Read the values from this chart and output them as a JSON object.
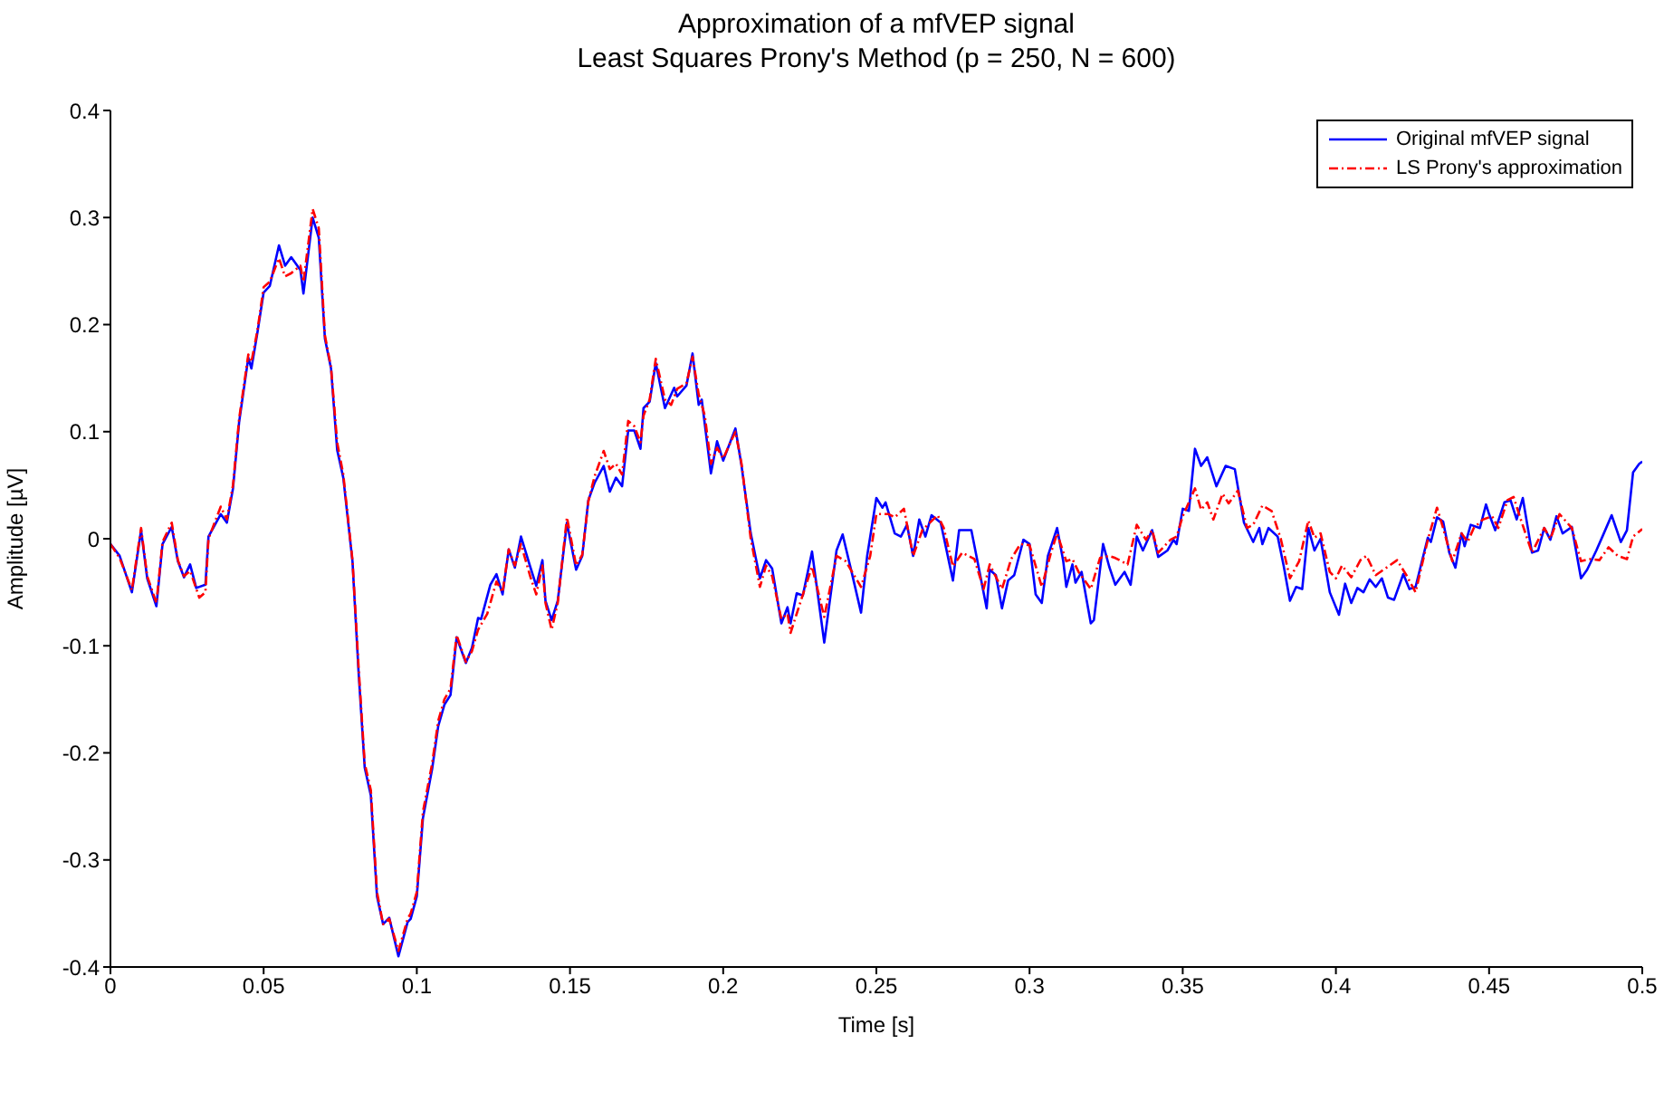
{
  "chart_data": {
    "type": "line",
    "title": "Approximation of a mfVEP signal",
    "subtitle": "Least Squares Prony's Method (p = 250, N = 600)",
    "xlabel": "Time [s]",
    "ylabel": "Amplitude [µV]",
    "xlim": [
      0,
      0.5
    ],
    "xticks": [
      0,
      0.05,
      0.1,
      0.15,
      0.2,
      0.25,
      0.3,
      0.35,
      0.4,
      0.45,
      0.5
    ],
    "ylim": [
      -0.4,
      0.4
    ],
    "yticks": [
      -0.4,
      -0.3,
      -0.2,
      -0.1,
      0,
      0.1,
      0.2,
      0.3,
      0.4
    ],
    "grid": false,
    "legend": "top right",
    "marker": "none",
    "series": [
      {
        "name": "Original mfVEP signal",
        "color": "#0000ff",
        "line_style": "solid",
        "x": [
          0,
          0.003,
          0.007,
          0.01,
          0.012,
          0.015,
          0.017,
          0.02,
          0.022,
          0.024,
          0.026,
          0.028,
          0.031,
          0.032,
          0.036,
          0.038,
          0.04,
          0.042,
          0.045,
          0.046,
          0.048,
          0.05,
          0.052,
          0.055,
          0.057,
          0.059,
          0.062,
          0.063,
          0.066,
          0.068,
          0.07,
          0.072,
          0.074,
          0.076,
          0.079,
          0.081,
          0.083,
          0.085,
          0.087,
          0.089,
          0.091,
          0.094,
          0.097,
          0.098,
          0.1,
          0.102,
          0.105,
          0.107,
          0.109,
          0.111,
          0.113,
          0.116,
          0.118,
          0.12,
          0.121,
          0.124,
          0.126,
          0.128,
          0.13,
          0.132,
          0.134,
          0.137,
          0.139,
          0.141,
          0.142,
          0.144,
          0.146,
          0.149,
          0.15,
          0.152,
          0.154,
          0.156,
          0.158,
          0.161,
          0.163,
          0.165,
          0.167,
          0.169,
          0.171,
          0.173,
          0.174,
          0.176,
          0.178,
          0.181,
          0.184,
          0.185,
          0.188,
          0.19,
          0.192,
          0.193,
          0.196,
          0.198,
          0.2,
          0.204,
          0.206,
          0.209,
          0.212,
          0.214,
          0.216,
          0.219,
          0.221,
          0.222,
          0.224,
          0.226,
          0.229,
          0.233,
          0.237,
          0.239,
          0.242,
          0.245,
          0.247,
          0.25,
          0.252,
          0.253,
          0.256,
          0.258,
          0.26,
          0.262,
          0.264,
          0.266,
          0.268,
          0.271,
          0.275,
          0.277,
          0.281,
          0.283,
          0.286,
          0.287,
          0.289,
          0.291,
          0.293,
          0.295,
          0.298,
          0.3,
          0.302,
          0.304,
          0.306,
          0.309,
          0.311,
          0.312,
          0.314,
          0.315,
          0.317,
          0.32,
          0.321,
          0.324,
          0.326,
          0.328,
          0.331,
          0.333,
          0.335,
          0.337,
          0.34,
          0.342,
          0.345,
          0.347,
          0.348,
          0.35,
          0.352,
          0.354,
          0.356,
          0.358,
          0.361,
          0.364,
          0.367,
          0.37,
          0.373,
          0.375,
          0.376,
          0.378,
          0.381,
          0.383,
          0.385,
          0.387,
          0.389,
          0.391,
          0.393,
          0.395,
          0.398,
          0.401,
          0.403,
          0.405,
          0.407,
          0.409,
          0.411,
          0.413,
          0.415,
          0.417,
          0.419,
          0.422,
          0.424,
          0.426,
          0.43,
          0.431,
          0.433,
          0.435,
          0.437,
          0.439,
          0.441,
          0.442,
          0.444,
          0.447,
          0.449,
          0.45,
          0.452,
          0.455,
          0.457,
          0.459,
          0.461,
          0.464,
          0.466,
          0.468,
          0.47,
          0.472,
          0.474,
          0.477,
          0.48,
          0.482,
          0.485,
          0.487,
          0.49,
          0.493,
          0.495,
          0.497,
          0.499,
          0.5
        ],
        "values": [
          -0.005,
          -0.016,
          -0.05,
          0.008,
          -0.037,
          -0.063,
          -0.005,
          0.011,
          -0.021,
          -0.036,
          -0.024,
          -0.046,
          -0.043,
          0.002,
          0.023,
          0.015,
          0.047,
          0.109,
          0.169,
          0.159,
          0.193,
          0.23,
          0.236,
          0.274,
          0.255,
          0.263,
          0.251,
          0.229,
          0.3,
          0.281,
          0.187,
          0.159,
          0.083,
          0.057,
          -0.021,
          -0.125,
          -0.214,
          -0.24,
          -0.334,
          -0.36,
          -0.354,
          -0.39,
          -0.358,
          -0.355,
          -0.334,
          -0.261,
          -0.215,
          -0.175,
          -0.155,
          -0.146,
          -0.092,
          -0.116,
          -0.102,
          -0.074,
          -0.075,
          -0.043,
          -0.033,
          -0.052,
          -0.01,
          -0.027,
          0.002,
          -0.026,
          -0.044,
          -0.02,
          -0.058,
          -0.076,
          -0.058,
          0.015,
          0,
          -0.029,
          -0.016,
          0.036,
          0.052,
          0.068,
          0.044,
          0.057,
          0.049,
          0.101,
          0.101,
          0.084,
          0.122,
          0.128,
          0.164,
          0.122,
          0.141,
          0.133,
          0.143,
          0.173,
          0.125,
          0.13,
          0.061,
          0.091,
          0.073,
          0.103,
          0.068,
          0.005,
          -0.037,
          -0.02,
          -0.028,
          -0.079,
          -0.064,
          -0.079,
          -0.051,
          -0.053,
          -0.012,
          -0.097,
          -0.011,
          0.004,
          -0.032,
          -0.069,
          -0.016,
          0.038,
          0.029,
          0.034,
          0.005,
          0.002,
          0.013,
          -0.016,
          0.018,
          0.002,
          0.022,
          0.015,
          -0.039,
          0.008,
          0.008,
          -0.021,
          -0.065,
          -0.029,
          -0.034,
          -0.065,
          -0.039,
          -0.034,
          -0.001,
          -0.005,
          -0.052,
          -0.06,
          -0.016,
          0.01,
          -0.021,
          -0.045,
          -0.024,
          -0.041,
          -0.031,
          -0.079,
          -0.076,
          -0.005,
          -0.026,
          -0.043,
          -0.031,
          -0.043,
          0.002,
          -0.011,
          0.008,
          -0.017,
          -0.011,
          -0.001,
          -0.005,
          0.028,
          0.026,
          0.084,
          0.068,
          0.076,
          0.049,
          0.068,
          0.065,
          0.015,
          -0.003,
          0.01,
          -0.005,
          0.01,
          0.002,
          -0.026,
          -0.058,
          -0.045,
          -0.047,
          0.01,
          -0.011,
          0,
          -0.05,
          -0.071,
          -0.042,
          -0.06,
          -0.046,
          -0.05,
          -0.038,
          -0.045,
          -0.037,
          -0.055,
          -0.057,
          -0.033,
          -0.047,
          -0.045,
          0.001,
          -0.003,
          0.02,
          0.016,
          -0.013,
          -0.027,
          0.005,
          -0.007,
          0.013,
          0.01,
          0.032,
          0.023,
          0.008,
          0.034,
          0.036,
          0.018,
          0.038,
          -0.013,
          -0.011,
          0.01,
          -0.001,
          0.021,
          0.005,
          0.011,
          -0.037,
          -0.029,
          -0.011,
          0.002,
          0.022,
          -0.003,
          0.008,
          0.062,
          0.07,
          0.072
        ]
      },
      {
        "name": "LS Prony's approximation",
        "color": "#ff0000",
        "line_style": "dashed",
        "x": [
          0,
          0.003,
          0.007,
          0.01,
          0.012,
          0.015,
          0.017,
          0.02,
          0.022,
          0.024,
          0.026,
          0.029,
          0.031,
          0.032,
          0.036,
          0.038,
          0.04,
          0.042,
          0.045,
          0.046,
          0.048,
          0.05,
          0.052,
          0.055,
          0.057,
          0.059,
          0.062,
          0.063,
          0.066,
          0.068,
          0.07,
          0.072,
          0.074,
          0.076,
          0.079,
          0.081,
          0.083,
          0.085,
          0.087,
          0.089,
          0.091,
          0.094,
          0.097,
          0.098,
          0.1,
          0.102,
          0.105,
          0.107,
          0.109,
          0.111,
          0.113,
          0.116,
          0.118,
          0.12,
          0.123,
          0.126,
          0.128,
          0.13,
          0.132,
          0.134,
          0.137,
          0.139,
          0.141,
          0.142,
          0.144,
          0.146,
          0.149,
          0.15,
          0.152,
          0.154,
          0.156,
          0.158,
          0.161,
          0.163,
          0.165,
          0.167,
          0.169,
          0.171,
          0.173,
          0.174,
          0.176,
          0.178,
          0.181,
          0.183,
          0.185,
          0.188,
          0.19,
          0.192,
          0.194,
          0.196,
          0.198,
          0.2,
          0.204,
          0.206,
          0.209,
          0.212,
          0.214,
          0.216,
          0.219,
          0.221,
          0.222,
          0.224,
          0.229,
          0.233,
          0.237,
          0.24,
          0.245,
          0.248,
          0.25,
          0.254,
          0.256,
          0.259,
          0.262,
          0.265,
          0.27,
          0.272,
          0.275,
          0.278,
          0.282,
          0.285,
          0.287,
          0.291,
          0.294,
          0.297,
          0.3,
          0.304,
          0.307,
          0.309,
          0.312,
          0.314,
          0.316,
          0.32,
          0.323,
          0.326,
          0.328,
          0.332,
          0.335,
          0.338,
          0.34,
          0.342,
          0.346,
          0.348,
          0.35,
          0.354,
          0.356,
          0.358,
          0.36,
          0.363,
          0.365,
          0.368,
          0.371,
          0.373,
          0.376,
          0.379,
          0.382,
          0.385,
          0.388,
          0.391,
          0.393,
          0.395,
          0.398,
          0.4,
          0.402,
          0.405,
          0.408,
          0.41,
          0.413,
          0.417,
          0.42,
          0.423,
          0.426,
          0.43,
          0.433,
          0.435,
          0.438,
          0.441,
          0.443,
          0.445,
          0.448,
          0.451,
          0.453,
          0.456,
          0.458,
          0.46,
          0.464,
          0.468,
          0.47,
          0.473,
          0.477,
          0.48,
          0.483,
          0.486,
          0.489,
          0.492,
          0.495,
          0.497,
          0.5
        ],
        "values": [
          -0.005,
          -0.018,
          -0.048,
          0.01,
          -0.035,
          -0.06,
          -0.003,
          0.015,
          -0.02,
          -0.035,
          -0.03,
          -0.055,
          -0.05,
          0,
          0.03,
          0.018,
          0.05,
          0.112,
          0.172,
          0.165,
          0.195,
          0.235,
          0.24,
          0.262,
          0.245,
          0.248,
          0.255,
          0.24,
          0.308,
          0.29,
          0.19,
          0.16,
          0.09,
          0.06,
          -0.02,
          -0.12,
          -0.21,
          -0.235,
          -0.33,
          -0.36,
          -0.355,
          -0.385,
          -0.355,
          -0.35,
          -0.33,
          -0.255,
          -0.21,
          -0.17,
          -0.15,
          -0.14,
          -0.09,
          -0.115,
          -0.105,
          -0.085,
          -0.07,
          -0.04,
          -0.05,
          -0.01,
          -0.025,
          -0.005,
          -0.035,
          -0.052,
          -0.025,
          -0.06,
          -0.085,
          -0.06,
          0.02,
          0.005,
          -0.025,
          -0.015,
          0.035,
          0.058,
          0.082,
          0.065,
          0.07,
          0.06,
          0.11,
          0.105,
          0.09,
          0.115,
          0.13,
          0.168,
          0.13,
          0.125,
          0.14,
          0.145,
          0.17,
          0.135,
          0.115,
          0.07,
          0.085,
          0.075,
          0.1,
          0.07,
          0,
          -0.045,
          -0.025,
          -0.035,
          -0.075,
          -0.07,
          -0.088,
          -0.07,
          -0.026,
          -0.073,
          -0.016,
          -0.021,
          -0.045,
          -0.016,
          0.023,
          0.023,
          0.02,
          0.028,
          -0.016,
          0.008,
          0.022,
          0.01,
          -0.026,
          -0.013,
          -0.019,
          -0.047,
          -0.024,
          -0.047,
          -0.019,
          -0.005,
          -0.006,
          -0.045,
          -0.013,
          0.005,
          -0.021,
          -0.019,
          -0.031,
          -0.047,
          -0.018,
          -0.016,
          -0.018,
          -0.024,
          0.013,
          -0.001,
          0.008,
          -0.013,
          -0.001,
          0.002,
          0.021,
          0.047,
          0.027,
          0.034,
          0.018,
          0.042,
          0.033,
          0.045,
          0.01,
          0.013,
          0.031,
          0.026,
          0,
          -0.037,
          -0.021,
          0.017,
          0.001,
          0.005,
          -0.031,
          -0.037,
          -0.025,
          -0.036,
          -0.02,
          -0.016,
          -0.034,
          -0.026,
          -0.02,
          -0.034,
          -0.05,
          -0.001,
          0.029,
          0.01,
          -0.021,
          0.005,
          -0.003,
          0.01,
          0.018,
          0.021,
          0.01,
          0.036,
          0.039,
          0.021,
          -0.013,
          0.01,
          0,
          0.023,
          0.01,
          -0.021,
          -0.019,
          -0.02,
          -0.008,
          -0.016,
          -0.019,
          0.002,
          0.009
        ]
      }
    ]
  }
}
